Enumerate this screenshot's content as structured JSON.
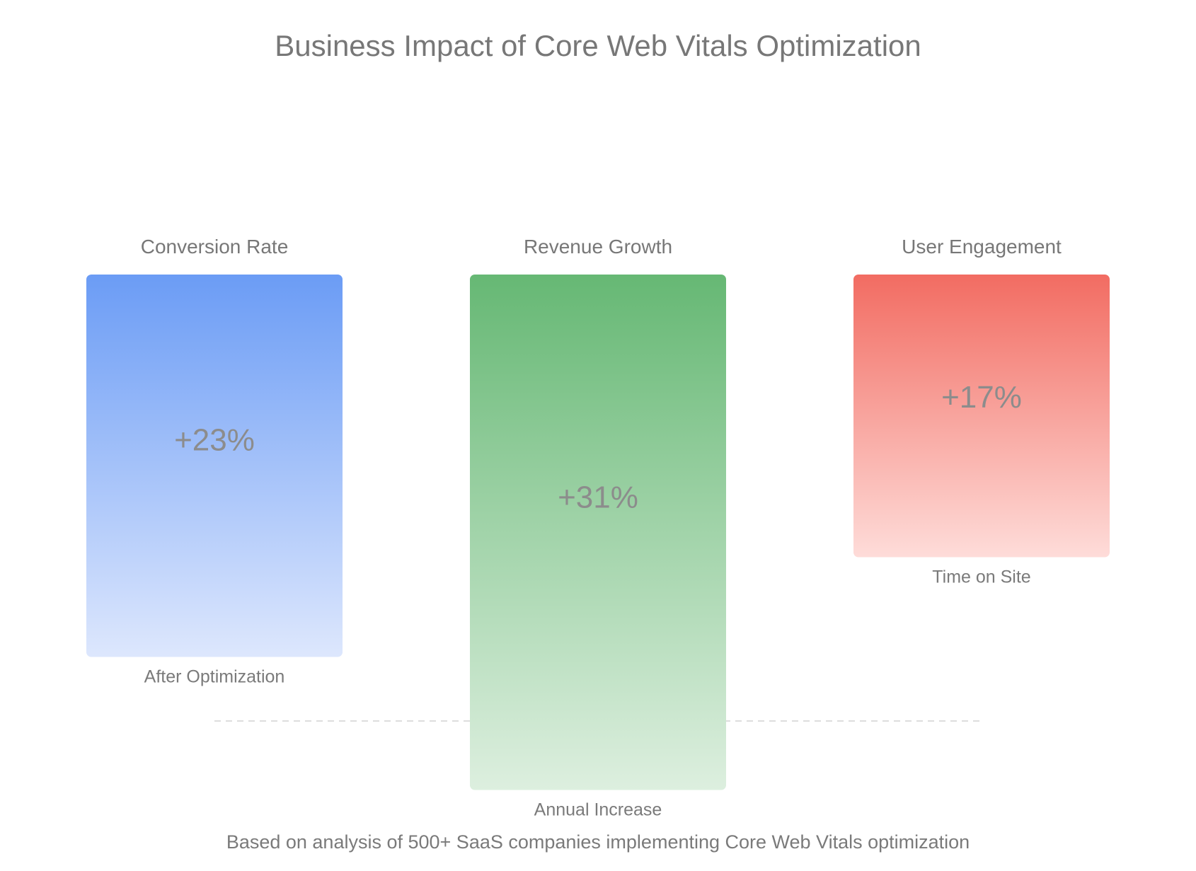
{
  "chart_data": {
    "type": "bar",
    "title": "Business Impact of Core Web Vitals Optimization",
    "footnote": "Based on analysis of 500+ SaaS companies implementing Core Web Vitals optimization",
    "categories": [
      "Conversion Rate",
      "Revenue Growth",
      "User Engagement"
    ],
    "values": [
      23,
      31,
      17
    ],
    "value_labels": [
      "+23%",
      "+31%",
      "+17%"
    ],
    "sublabels": [
      "After Optimization",
      "Annual Increase",
      "Time on Site"
    ],
    "colors": [
      {
        "top": "#6b9cf5",
        "bottom": "#dde7fd"
      },
      {
        "top": "#66b874",
        "bottom": "#ddefdf"
      },
      {
        "top": "#f26c62",
        "bottom": "#fedcd9"
      }
    ],
    "unit": "%",
    "grid": false,
    "baseline_style": "dashed"
  }
}
